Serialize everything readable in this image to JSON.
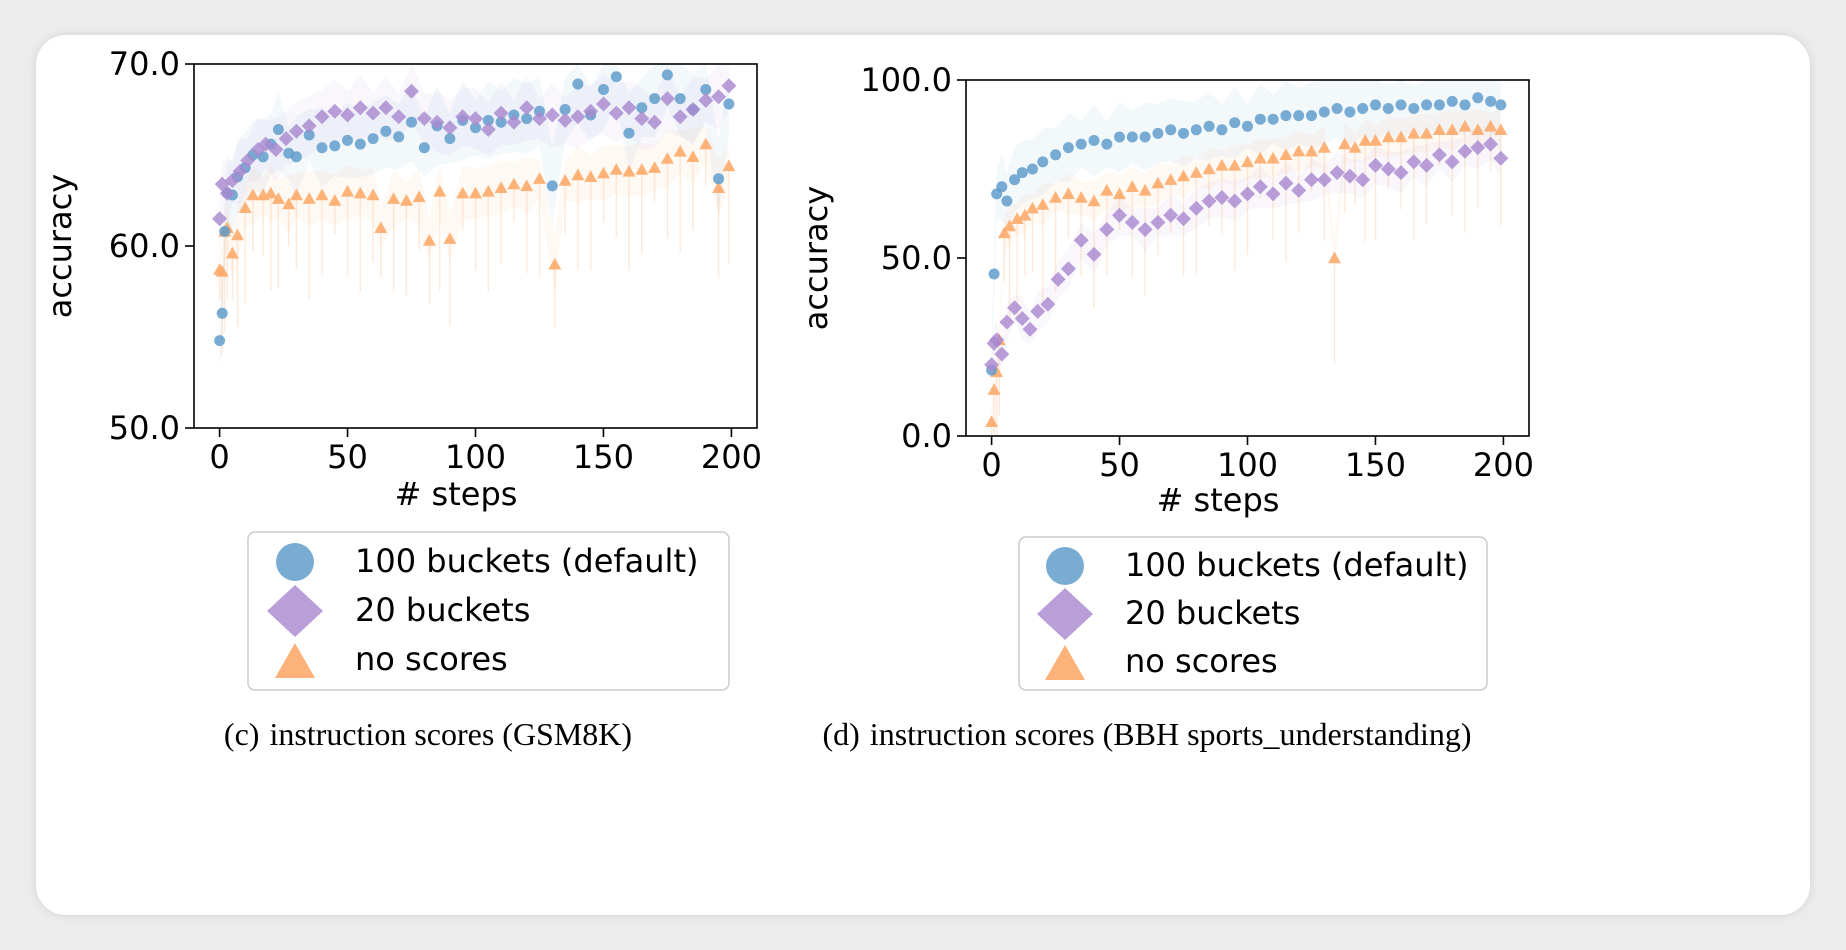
{
  "chart_data": [
    {
      "type": "scatter",
      "caption_label": "(c)",
      "caption_text": "instruction scores (GSM8K)",
      "xlabel": "# steps",
      "ylabel": "accuracy",
      "xlim": [
        -10,
        210
      ],
      "ylim": [
        50,
        70
      ],
      "xticks": [
        0,
        50,
        100,
        150,
        200
      ],
      "xtick_labels": [
        "0",
        "50",
        "100",
        "150",
        "200"
      ],
      "yticks": [
        50,
        60,
        70
      ],
      "ytick_labels": [
        "50.0",
        "60.0",
        "70.0"
      ],
      "series": [
        {
          "name": "100 buckets (default)",
          "marker": "circle",
          "color": "#5b9ac9",
          "x": [
            0,
            1,
            2,
            3,
            5,
            7,
            10,
            13,
            17,
            20,
            23,
            27,
            30,
            35,
            40,
            45,
            50,
            55,
            60,
            65,
            70,
            75,
            80,
            85,
            90,
            95,
            100,
            105,
            110,
            115,
            120,
            125,
            130,
            135,
            140,
            145,
            150,
            155,
            160,
            165,
            170,
            175,
            180,
            185,
            190,
            195,
            199
          ],
          "y": [
            54.8,
            56.3,
            60.8,
            62.9,
            62.8,
            63.8,
            64.3,
            65.0,
            64.9,
            65.6,
            66.4,
            65.1,
            64.9,
            66.1,
            65.4,
            65.5,
            65.8,
            65.6,
            65.9,
            66.3,
            66.0,
            66.8,
            65.4,
            66.6,
            65.9,
            66.9,
            66.5,
            66.9,
            66.8,
            67.2,
            67.0,
            67.4,
            63.3,
            67.5,
            68.9,
            67.2,
            68.6,
            69.3,
            66.2,
            67.6,
            68.1,
            69.4,
            68.1,
            67.5,
            68.6,
            63.7,
            67.8
          ]
        },
        {
          "name": "20 buckets",
          "marker": "diamond",
          "color": "#a989cf",
          "x": [
            0,
            1,
            3,
            5,
            8,
            11,
            15,
            18,
            22,
            26,
            30,
            35,
            40,
            45,
            50,
            55,
            60,
            65,
            70,
            75,
            80,
            85,
            90,
            95,
            100,
            105,
            110,
            115,
            120,
            125,
            130,
            135,
            140,
            145,
            150,
            155,
            160,
            165,
            170,
            175,
            180,
            185,
            190,
            195,
            199
          ],
          "y": [
            61.5,
            63.4,
            62.9,
            63.6,
            64.1,
            64.7,
            65.3,
            65.6,
            65.3,
            65.9,
            66.3,
            66.6,
            67.1,
            67.4,
            67.2,
            67.6,
            67.3,
            67.6,
            67.1,
            68.5,
            67.0,
            66.8,
            66.5,
            67.1,
            67.0,
            66.4,
            67.3,
            66.8,
            67.6,
            67.0,
            67.2,
            66.9,
            67.1,
            67.4,
            67.8,
            67.3,
            67.6,
            67.0,
            66.8,
            68.1,
            67.1,
            67.5,
            68.0,
            68.2,
            68.8
          ]
        },
        {
          "name": "no scores",
          "marker": "triangle",
          "color": "#fdaa6a",
          "x": [
            0,
            1,
            2,
            3,
            5,
            7,
            10,
            13,
            17,
            20,
            23,
            27,
            30,
            35,
            40,
            45,
            50,
            55,
            60,
            63,
            68,
            73,
            78,
            82,
            86,
            90,
            95,
            100,
            105,
            110,
            115,
            120,
            125,
            131,
            135,
            140,
            145,
            150,
            155,
            160,
            165,
            170,
            175,
            180,
            185,
            190,
            195,
            199
          ],
          "y": [
            58.7,
            58.6,
            60.8,
            61.0,
            59.6,
            60.6,
            62.1,
            62.8,
            62.8,
            62.9,
            62.6,
            62.3,
            62.8,
            62.6,
            62.8,
            62.5,
            63.0,
            62.9,
            62.8,
            61.0,
            62.6,
            62.5,
            62.7,
            60.3,
            63.0,
            60.4,
            62.9,
            62.9,
            63.0,
            63.2,
            63.4,
            63.3,
            63.7,
            59.0,
            63.6,
            63.9,
            63.8,
            64.0,
            64.2,
            64.1,
            64.2,
            64.3,
            64.8,
            65.2,
            64.9,
            65.6,
            63.2,
            64.4
          ]
        }
      ]
    },
    {
      "type": "scatter",
      "caption_label": "(d)",
      "caption_text": "instruction scores (BBH sports_understanding)",
      "xlabel": "# steps",
      "ylabel": "accuracy",
      "xlim": [
        -10,
        210
      ],
      "ylim": [
        0,
        100
      ],
      "xticks": [
        0,
        50,
        100,
        150,
        200
      ],
      "xtick_labels": [
        "0",
        "50",
        "100",
        "150",
        "200"
      ],
      "yticks": [
        0,
        50,
        100
      ],
      "ytick_labels": [
        "0.0",
        "50.0",
        "100.0"
      ],
      "series": [
        {
          "name": "100 buckets (default)",
          "marker": "circle",
          "color": "#5b9ac9",
          "x": [
            0,
            1,
            2,
            4,
            6,
            9,
            12,
            16,
            20,
            25,
            30,
            35,
            40,
            45,
            50,
            55,
            60,
            65,
            70,
            75,
            80,
            85,
            90,
            95,
            100,
            105,
            110,
            115,
            120,
            125,
            130,
            135,
            140,
            145,
            150,
            155,
            160,
            165,
            170,
            175,
            180,
            185,
            190,
            195,
            199
          ],
          "y": [
            18.5,
            45.5,
            68.0,
            70.0,
            66.0,
            72.0,
            74.0,
            75.0,
            77.0,
            79.0,
            81.0,
            82.0,
            83.0,
            82.0,
            84.0,
            84.0,
            84.0,
            85.0,
            86.0,
            85.0,
            86.0,
            87.0,
            86.0,
            88.0,
            87.0,
            89.0,
            89.0,
            90.0,
            90.0,
            90.0,
            91.0,
            92.0,
            91.0,
            92.0,
            93.0,
            92.0,
            93.0,
            92.0,
            93.0,
            93.0,
            94.0,
            93.0,
            95.0,
            94.0,
            93.0
          ]
        },
        {
          "name": "20 buckets",
          "marker": "diamond",
          "color": "#a989cf",
          "x": [
            0,
            1,
            2,
            4,
            6,
            9,
            12,
            15,
            18,
            22,
            26,
            30,
            35,
            40,
            45,
            50,
            55,
            60,
            65,
            70,
            75,
            80,
            85,
            90,
            95,
            100,
            105,
            110,
            115,
            120,
            125,
            130,
            135,
            140,
            145,
            150,
            155,
            160,
            165,
            170,
            175,
            180,
            185,
            190,
            195,
            199
          ],
          "y": [
            20.0,
            26.0,
            27.0,
            23.0,
            32.0,
            36.0,
            33.0,
            30.0,
            35.0,
            37.0,
            44.0,
            47.0,
            55.0,
            51.0,
            58.0,
            62.0,
            60.0,
            58.0,
            60.0,
            62.0,
            61.0,
            64.0,
            66.0,
            67.0,
            66.0,
            68.0,
            70.0,
            68.0,
            71.0,
            69.0,
            72.0,
            72.0,
            74.0,
            73.0,
            72.0,
            76.0,
            75.0,
            74.0,
            77.0,
            76.0,
            79.0,
            77.0,
            80.0,
            81.0,
            82.0,
            78.0
          ]
        },
        {
          "name": "no scores",
          "marker": "triangle",
          "color": "#fdaa6a",
          "x": [
            0,
            1,
            2,
            3,
            5,
            7,
            10,
            13,
            16,
            20,
            25,
            30,
            35,
            40,
            45,
            50,
            55,
            60,
            65,
            70,
            75,
            80,
            85,
            90,
            95,
            100,
            105,
            110,
            115,
            120,
            125,
            130,
            134,
            138,
            142,
            146,
            150,
            155,
            160,
            165,
            170,
            175,
            180,
            185,
            190,
            195,
            199
          ],
          "y": [
            4.0,
            13.0,
            18.0,
            27.0,
            57.0,
            59.0,
            61.0,
            62.0,
            64.0,
            65.0,
            67.0,
            68.0,
            67.0,
            66.0,
            69.0,
            68.0,
            70.0,
            69.0,
            71.0,
            72.0,
            73.0,
            74.0,
            75.0,
            76.0,
            76.0,
            77.0,
            78.0,
            78.0,
            79.0,
            80.0,
            80.0,
            81.0,
            50.0,
            82.0,
            81.0,
            83.0,
            83.0,
            84.0,
            84.0,
            85.0,
            85.0,
            86.0,
            86.0,
            87.0,
            86.0,
            87.0,
            86.0
          ]
        }
      ]
    }
  ]
}
